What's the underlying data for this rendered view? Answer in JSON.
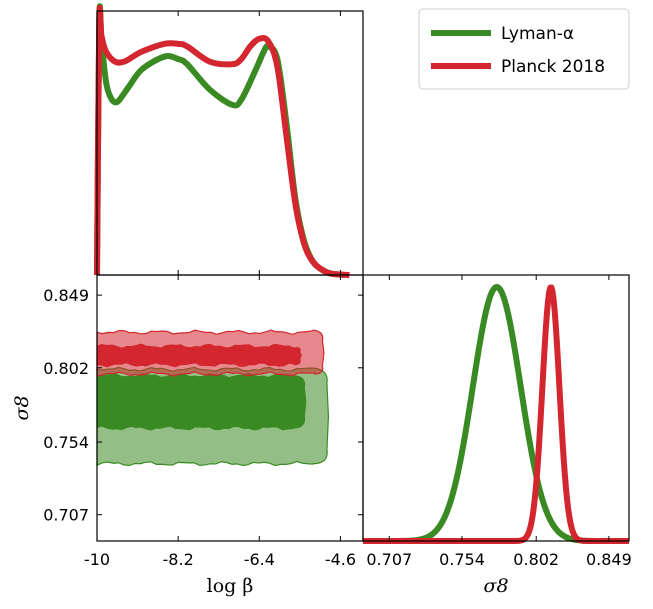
{
  "chart_data": {
    "type": "triangle-corner-plot",
    "series": [
      {
        "name": "Lyman-α",
        "color": "#3a8a23"
      },
      {
        "name": "Planck 2018",
        "color": "#d3262f"
      }
    ],
    "parameters": {
      "logbeta": {
        "label": "log β",
        "range": [
          -10,
          -4.1
        ],
        "ticks": [
          "-10",
          "-8.2",
          "-6.4",
          "-4.6"
        ]
      },
      "sigma8": {
        "label": "σ8",
        "range": [
          0.69,
          0.862
        ],
        "ticks": [
          "0.707",
          "0.754",
          "0.802",
          "0.849"
        ]
      }
    },
    "logbeta_posteriors": [
      {
        "name": "Lyman-α",
        "x": [
          -10.0,
          -9.95,
          -9.9,
          -9.8,
          -9.7,
          -9.6,
          -9.5,
          -9.3,
          -9.0,
          -8.5,
          -8.2,
          -8.0,
          -7.5,
          -7.0,
          -6.8,
          -6.5,
          -6.3,
          -6.2,
          -6.0,
          -5.8,
          -5.6,
          -5.4,
          -5.2,
          -5.0,
          -4.8,
          -4.5
        ],
        "y": [
          0.0,
          1.0,
          0.92,
          0.76,
          0.7,
          0.68,
          0.69,
          0.74,
          0.81,
          0.86,
          0.85,
          0.83,
          0.73,
          0.67,
          0.69,
          0.8,
          0.88,
          0.9,
          0.85,
          0.6,
          0.3,
          0.13,
          0.05,
          0.02,
          0.005,
          0.0
        ]
      },
      {
        "name": "Planck 2018",
        "x": [
          -10.0,
          -9.95,
          -9.9,
          -9.8,
          -9.6,
          -9.4,
          -9.2,
          -9.0,
          -8.5,
          -8.2,
          -8.0,
          -7.5,
          -7.0,
          -6.8,
          -6.6,
          -6.4,
          -6.2,
          -6.0,
          -5.8,
          -5.6,
          -5.4,
          -5.2,
          -5.0,
          -4.8,
          -4.4
        ],
        "y": [
          0.0,
          0.99,
          0.94,
          0.88,
          0.84,
          0.84,
          0.86,
          0.88,
          0.91,
          0.91,
          0.9,
          0.84,
          0.83,
          0.85,
          0.9,
          0.93,
          0.92,
          0.82,
          0.55,
          0.28,
          0.12,
          0.05,
          0.02,
          0.005,
          0.0
        ]
      }
    ],
    "sigma8_posteriors": [
      {
        "name": "Lyman-α",
        "mean": 0.7765,
        "sigma": 0.0155,
        "x_range": [
          0.69,
          0.862
        ]
      },
      {
        "name": "Planck 2018",
        "mean": 0.8115,
        "sigma": 0.0055,
        "x_range": [
          0.69,
          0.862
        ]
      }
    ],
    "contours_2d": [
      {
        "name": "Lyman-α",
        "logbeta_range": [
          -10,
          -4.9
        ],
        "sigma8_68": [
          0.763,
          0.797
        ],
        "sigma8_95": [
          0.74,
          0.801
        ]
      },
      {
        "name": "Planck 2018",
        "logbeta_range": [
          -10,
          -5.0
        ],
        "sigma8_68": [
          0.804,
          0.816
        ],
        "sigma8_95": [
          0.798,
          0.825
        ]
      }
    ]
  },
  "legend": {
    "items": [
      {
        "label": "Lyman-α",
        "color": "#3a8a23"
      },
      {
        "label": "Planck 2018",
        "color": "#d3262f"
      }
    ]
  },
  "axes": {
    "x_logbeta_label": "log β",
    "x_sigma8_label": "σ8",
    "y_sigma8_label": "σ8",
    "logbeta_ticks": [
      "-10",
      "-8.2",
      "-6.4",
      "-4.6"
    ],
    "sigma8_ticks": [
      "0.707",
      "0.754",
      "0.802",
      "0.849"
    ]
  }
}
